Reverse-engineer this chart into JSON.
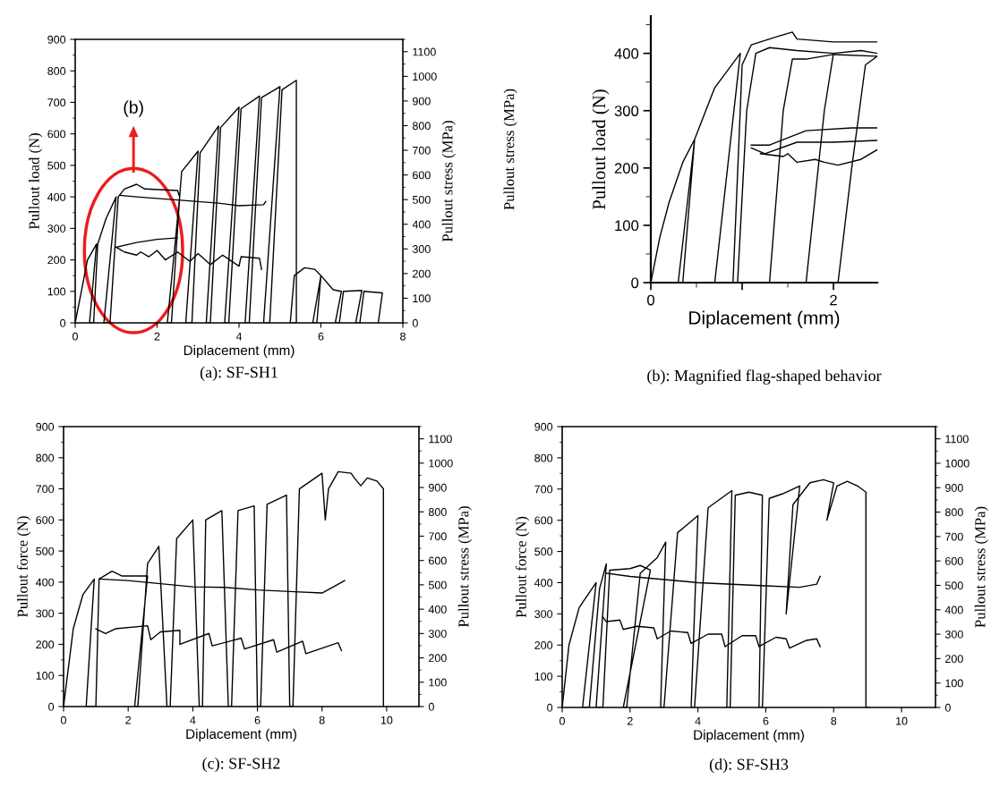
{
  "chart_data": [
    {
      "type": "line",
      "title": "(a): SF-SH1",
      "xlabel": "Diplacement (mm)",
      "ylabel": "Pullout load (N)",
      "y2label": "Pullout stress (MPa)",
      "xlim": [
        0,
        8
      ],
      "xticks": [
        0,
        2,
        4,
        6,
        8
      ],
      "ylim": [
        0,
        900
      ],
      "yticks": [
        0,
        100,
        200,
        300,
        400,
        500,
        600,
        700,
        800,
        900
      ],
      "y2lim": [
        0,
        1150
      ],
      "y2ticks": [
        0,
        100,
        200,
        300,
        400,
        500,
        600,
        700,
        800,
        900,
        1000,
        1100
      ],
      "annotations": [
        "(b)"
      ],
      "series": [
        {
          "color": "#000000",
          "x": [
            0,
            0.15,
            0.3,
            0.52,
            0.35,
            0.45,
            0.55,
            0.75,
            1.0,
            0.7,
            0.85,
            1.05,
            1.2,
            1.5,
            1.7,
            2.5,
            2.55,
            2.25,
            2.35,
            2.55,
            2.6,
            3.0,
            2.7,
            2.85,
            3.05,
            3.5,
            3.2,
            3.3,
            3.55,
            4.0,
            3.65,
            3.75,
            4.05,
            4.5,
            4.15,
            4.25,
            4.55,
            5.0,
            4.6,
            4.75,
            5.05,
            5.4,
            5.4,
            5.25,
            5.35,
            5.6,
            5.85,
            6.0,
            5.8,
            5.9,
            6.0,
            6.3,
            6.5,
            6.35,
            6.45,
            6.55,
            7.0,
            6.85,
            6.95,
            7.05,
            7.5,
            7.4
          ],
          "values": [
            0,
            100,
            200,
            250,
            0,
            0,
            250,
            330,
            400,
            0,
            0,
            400,
            425,
            440,
            425,
            420,
            400,
            0,
            0,
            400,
            480,
            545,
            0,
            0,
            540,
            625,
            0,
            0,
            620,
            685,
            0,
            0,
            680,
            720,
            0,
            0,
            715,
            750,
            0,
            0,
            740,
            770,
            0,
            0,
            150,
            175,
            170,
            150,
            0,
            0,
            150,
            105,
            100,
            0,
            0,
            100,
            103,
            0,
            0,
            100,
            95,
            0
          ]
        },
        {
          "color": "#000000",
          "x": [
            1.1,
            1.5,
            2.0,
            2.5,
            3.0,
            3.5,
            4.0,
            4.6,
            4.65
          ],
          "values": [
            405,
            400,
            395,
            390,
            385,
            380,
            372,
            375,
            385
          ]
        },
        {
          "color": "#000000",
          "x": [
            1.0,
            1.2,
            1.5,
            1.6,
            1.8,
            2.0,
            2.2,
            2.5,
            2.8,
            3.0,
            3.3,
            3.6,
            4.0,
            4.05,
            4.5,
            4.55
          ],
          "values": [
            240,
            225,
            215,
            225,
            210,
            230,
            200,
            225,
            195,
            220,
            185,
            215,
            180,
            210,
            205,
            170
          ]
        },
        {
          "color": "#000000",
          "x": [
            1.0,
            1.5,
            2.0,
            2.5
          ],
          "values": [
            240,
            255,
            265,
            270
          ]
        }
      ]
    },
    {
      "type": "line",
      "title": "(b): Magnified flag-shaped behavior",
      "xlabel": "Diplacement (mm)",
      "ylabel": "Pullout load (N)",
      "y2label": "Pullout stress (MPa)",
      "xlim": [
        0,
        2.48
      ],
      "xticks": [
        0,
        {
          "value": 1,
          "label": null
        },
        2
      ],
      "ylim": [
        0,
        465
      ],
      "yticks": [
        0,
        100,
        200,
        300,
        400
      ],
      "series": [
        {
          "color": "#000000",
          "x": [
            0,
            0.1,
            0.2,
            0.35,
            0.48,
            0.3,
            0.35,
            0.48,
            0.7,
            0.98,
            0.7,
            0.9,
            1.0,
            1.1,
            1.4,
            1.55,
            1.6,
            2.0,
            2.48
          ],
          "values": [
            0,
            80,
            140,
            210,
            250,
            0,
            0,
            250,
            340,
            400,
            0,
            0,
            380,
            415,
            430,
            437,
            425,
            420,
            420
          ]
        },
        {
          "color": "#000000",
          "x": [
            0.95,
            1.05,
            1.15,
            1.3,
            1.6,
            2.0,
            2.3,
            2.48
          ],
          "values": [
            0,
            300,
            400,
            410,
            405,
            400,
            405,
            400
          ]
        },
        {
          "color": "#000000",
          "x": [
            1.3,
            1.45,
            1.55,
            1.7,
            2.0,
            2.48
          ],
          "values": [
            0,
            300,
            390,
            390,
            398,
            395
          ]
        },
        {
          "color": "#000000",
          "x": [
            1.1,
            1.3,
            1.7,
            2.2,
            2.48
          ],
          "values": [
            240,
            240,
            265,
            270,
            270
          ]
        },
        {
          "color": "#000000",
          "x": [
            1.1,
            1.25,
            1.6,
            2.0,
            2.48
          ],
          "values": [
            235,
            225,
            245,
            245,
            248
          ]
        },
        {
          "color": "#000000",
          "x": [
            1.2,
            1.45,
            1.5,
            1.6,
            1.8,
            1.9,
            2.05,
            2.3,
            2.48
          ],
          "values": [
            225,
            220,
            225,
            210,
            215,
            210,
            205,
            215,
            232
          ]
        },
        {
          "color": "#000000",
          "x": [
            1.7,
            1.9,
            2.0
          ],
          "values": [
            0,
            300,
            400
          ]
        },
        {
          "color": "#000000",
          "x": [
            2.05,
            2.2,
            2.35,
            2.48
          ],
          "values": [
            0,
            200,
            380,
            395
          ]
        }
      ]
    },
    {
      "type": "line",
      "title": "(c): SF-SH2",
      "xlabel": "Diplacement (mm)",
      "ylabel": "Pullout force (N)",
      "y2label": "Pullout stress (MPa)",
      "xlim": [
        0,
        11
      ],
      "xticks": [
        0,
        2,
        4,
        6,
        8,
        10
      ],
      "ylim": [
        0,
        900
      ],
      "yticks": [
        0,
        100,
        200,
        300,
        400,
        500,
        600,
        700,
        800,
        900
      ],
      "y2lim": [
        0,
        1150
      ],
      "y2ticks": [
        0,
        100,
        200,
        300,
        400,
        500,
        600,
        700,
        800,
        900,
        1000,
        1100
      ],
      "series": [
        {
          "color": "#000000",
          "x": [
            0,
            0.3,
            0.6,
            0.95,
            0.7,
            1.0,
            1.1,
            1.5,
            1.8,
            2.6,
            2.2,
            2.3,
            2.6,
            2.95,
            3.2,
            3.3,
            3.5,
            4.0,
            4.2,
            4.3,
            4.4,
            4.9,
            5.1,
            5.2,
            5.4,
            5.9,
            6.0,
            6.1,
            6.3,
            6.9,
            7.0,
            7.1,
            7.3,
            8.0,
            8.1,
            8.2,
            8.5,
            8.9,
            9.0,
            9.2,
            9.4,
            9.7,
            9.9,
            9.9
          ],
          "values": [
            0,
            250,
            360,
            410,
            0,
            0,
            410,
            435,
            420,
            420,
            0,
            0,
            460,
            515,
            0,
            0,
            540,
            600,
            0,
            0,
            600,
            630,
            0,
            0,
            630,
            645,
            0,
            0,
            650,
            680,
            0,
            0,
            700,
            750,
            600,
            700,
            755,
            750,
            735,
            710,
            735,
            725,
            700,
            0
          ]
        },
        {
          "color": "#000000",
          "x": [
            1.1,
            2.0,
            3.0,
            4.0,
            5.0,
            6.0,
            7.0,
            8.0,
            8.7
          ],
          "values": [
            410,
            405,
            395,
            385,
            383,
            375,
            370,
            365,
            405
          ]
        },
        {
          "color": "#000000",
          "x": [
            1.0,
            1.3,
            1.6,
            2.6,
            2.7,
            3.0,
            3.6,
            3.6,
            4.5,
            4.6,
            5.5,
            5.6,
            6.5,
            6.6,
            7.4,
            7.5,
            8.5,
            8.6
          ],
          "values": [
            250,
            235,
            250,
            260,
            215,
            240,
            245,
            200,
            235,
            195,
            220,
            185,
            215,
            175,
            210,
            170,
            205,
            180
          ]
        }
      ]
    },
    {
      "type": "line",
      "title": "(d): SF-SH3",
      "xlabel": "Diplacement (mm)",
      "ylabel": "Pullout force (N)",
      "y2label": "Pullout stress (MPa)",
      "xlim": [
        0,
        11
      ],
      "xticks": [
        0,
        2,
        4,
        6,
        8,
        10
      ],
      "ylim": [
        0,
        900
      ],
      "yticks": [
        0,
        100,
        200,
        300,
        400,
        500,
        600,
        700,
        800,
        900
      ],
      "y2lim": [
        0,
        1150
      ],
      "y2ticks": [
        0,
        100,
        200,
        300,
        400,
        500,
        600,
        700,
        800,
        900,
        1000,
        1100
      ],
      "series": [
        {
          "color": "#000000",
          "x": [
            0,
            0.2,
            0.5,
            1.0,
            0.6,
            0.8,
            1.1,
            1.3,
            1.0,
            1.2,
            1.4,
            2.0,
            2.3,
            2.6,
            1.8,
            1.9,
            2.3,
            2.8,
            3.05,
            2.9,
            3.0,
            3.4,
            4.0,
            3.8,
            3.9,
            4.3,
            5.0,
            4.85,
            4.95,
            5.1,
            5.5,
            5.9,
            5.8,
            5.9,
            6.1,
            6.5,
            7.0,
            6.6,
            6.8,
            7.3,
            7.7,
            8.0,
            7.8,
            8.1,
            8.4,
            8.7,
            8.95,
            8.95,
            9.05
          ],
          "values": [
            0,
            200,
            320,
            400,
            0,
            0,
            380,
            460,
            0,
            0,
            440,
            445,
            455,
            440,
            0,
            0,
            430,
            480,
            530,
            0,
            0,
            560,
            615,
            0,
            0,
            640,
            695,
            0,
            0,
            680,
            690,
            680,
            0,
            0,
            670,
            685,
            710,
            300,
            650,
            720,
            730,
            720,
            600,
            710,
            725,
            710,
            690,
            0,
            0
          ]
        },
        {
          "color": "#000000",
          "x": [
            1.3,
            2.0,
            3.0,
            4.0,
            5.0,
            6.0,
            7.0,
            7.5,
            7.6
          ],
          "values": [
            430,
            420,
            410,
            400,
            395,
            390,
            385,
            395,
            420
          ]
        },
        {
          "color": "#000000",
          "x": [
            1.2,
            1.3,
            1.7,
            1.8,
            2.2,
            2.7,
            2.8,
            3.2,
            3.7,
            3.8,
            4.3,
            4.7,
            4.8,
            5.3,
            5.7,
            5.8,
            6.3,
            6.6,
            6.7,
            7.2,
            7.5,
            7.6
          ],
          "values": [
            290,
            275,
            280,
            250,
            260,
            255,
            220,
            245,
            240,
            205,
            235,
            235,
            195,
            230,
            230,
            195,
            225,
            220,
            190,
            215,
            220,
            195
          ]
        }
      ]
    }
  ]
}
